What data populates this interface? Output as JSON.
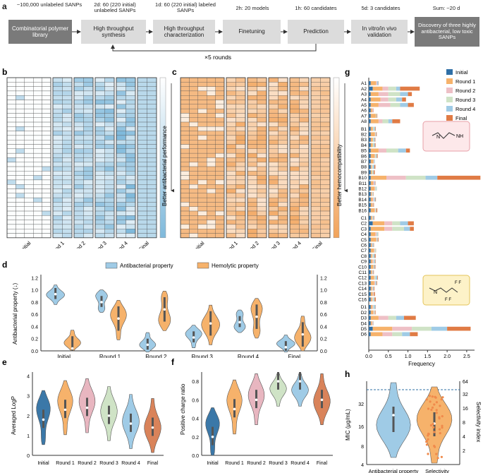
{
  "panels": {
    "a": "a",
    "b": "b",
    "c": "c",
    "d": "d",
    "e": "e",
    "f": "f",
    "g": "g",
    "h": "h"
  },
  "workflow": {
    "steps": [
      {
        "top": "~100,000 unlabeled SANPs",
        "label": "Combinatorial polymer library"
      },
      {
        "top": "2d: 60 (220 initial) unlabeled SANPs",
        "label": "High throughput synthesis"
      },
      {
        "top": "1d: 60 (220 initial) labeled SANPs",
        "label": "High throughput characterization"
      },
      {
        "top": "2h: 20 models",
        "label": "Finetuning"
      },
      {
        "top": "1h: 60 candidates",
        "label": "Prediction"
      },
      {
        "top": "5d: 3 candidates",
        "label": "In vitro/in vivo validation"
      },
      {
        "top": "Sum: ~20 d",
        "label": "Discovery of three highly antibacterial, low toxic SANPs"
      }
    ],
    "loop_label": "×5 rounds"
  },
  "heatmaps": {
    "rounds": [
      "Initial",
      "Round 1",
      "Round 2",
      "Round 3",
      "Round 4",
      "Final"
    ],
    "b_label": "Better antibacterial performance",
    "c_label": "Better hemocompatibility",
    "colors": {
      "blue": "#7fb9db",
      "orange": "#f2a35a"
    }
  },
  "violin_d": {
    "legend": [
      "Antibacterial property",
      "Hemolytic property"
    ],
    "ylabel_left": "Antibacterial property (↓)",
    "ylabel_right": "Hemolytic property (↓)",
    "ticks": [
      "0.0",
      "0.2",
      "0.4",
      "0.6",
      "0.8",
      "1.0",
      "1.2"
    ],
    "categories": [
      "Initial",
      "Round 1",
      "Round 2",
      "Round 3",
      "Round 4",
      "Final"
    ],
    "colors": {
      "anti": "#9fcbe6",
      "hemo": "#f6b26b"
    }
  },
  "violin_e": {
    "ylabel": "Averaged LogP",
    "ticks": [
      "0",
      "1",
      "2",
      "3",
      "4"
    ],
    "categories": [
      "Initial",
      "Round 1",
      "Round 2",
      "Round 3",
      "Round 4",
      "Final"
    ],
    "medians": [
      1.8,
      2.3,
      2.4,
      2.0,
      1.6,
      1.4
    ],
    "colors": [
      "#3b78a8",
      "#f6b26b",
      "#e8b6c0",
      "#cfe3c6",
      "#9fcbe6",
      "#d9835a"
    ]
  },
  "violin_f": {
    "ylabel": "Positive charge ratio",
    "ticks": [
      "0.0",
      "0.2",
      "0.4",
      "0.6",
      "0.8"
    ],
    "categories": [
      "Initial",
      "Round 1",
      "Round 2",
      "Round 3",
      "Round 4",
      "Final"
    ],
    "medians": [
      0.2,
      0.5,
      0.6,
      0.8,
      0.8,
      0.6
    ],
    "colors": [
      "#3b78a8",
      "#f6b26b",
      "#e8b6c0",
      "#cfe3c6",
      "#9fcbe6",
      "#d9835a"
    ]
  },
  "bars_g": {
    "xlabel": "Frequency",
    "xticks": [
      "0.0",
      "0.5",
      "1.0",
      "1.5",
      "2.0",
      "2.5"
    ],
    "legend": [
      "Initial",
      "Round 1",
      "Round 2",
      "Round 3",
      "Round 4",
      "Final"
    ],
    "colors": [
      "#2f6fa6",
      "#f6b26b",
      "#eec0c6",
      "#cfe3c6",
      "#9fcbe6",
      "#e07b45"
    ],
    "groups": [
      [
        "A1",
        "A2",
        "A3",
        "A4",
        "A5",
        "A6",
        "A7",
        "A8"
      ],
      [
        "B1",
        "B2",
        "B3",
        "B4",
        "B5",
        "B6",
        "B7",
        "B8",
        "B9",
        "B10",
        "B11",
        "B12",
        "B13",
        "B14",
        "B15",
        "B16"
      ],
      [
        "C1",
        "C2",
        "C3",
        "C4",
        "C5",
        "C6",
        "C7",
        "C8",
        "C9",
        "C10",
        "C11",
        "C12",
        "C13",
        "C14",
        "C15",
        "C16"
      ],
      [
        "D1",
        "D2",
        "D3",
        "D4",
        "D5",
        "D6"
      ]
    ]
  },
  "violin_h": {
    "ylabel_left": "MIC (μg/mL)",
    "ylabel_right": "Selectivity index",
    "left_ticks": [
      "4",
      "8",
      "16",
      "32"
    ],
    "right_ticks": [
      "2",
      "4",
      "8",
      "16",
      "32",
      "64"
    ],
    "categories": [
      "Antibacterial property",
      "Selectivity"
    ],
    "colors": {
      "mic": "#9fcbe6",
      "sel": "#f6b26b"
    }
  },
  "chart_data": [
    {
      "type": "violin",
      "title": "d",
      "categories": [
        "Initial",
        "Round 1",
        "Round 2",
        "Round 3",
        "Round 4",
        "Final"
      ],
      "series": [
        {
          "name": "Antibacterial property",
          "medians": [
            0.93,
            0.8,
            0.1,
            0.22,
            0.47,
            0.06
          ]
        },
        {
          "name": "Hemolytic property",
          "medians": [
            0.04,
            0.53,
            0.68,
            0.45,
            0.56,
            0.27
          ]
        }
      ],
      "ylabel": "Antibacterial property (↓)",
      "ylim": [
        0,
        1.25
      ]
    },
    {
      "type": "violin",
      "title": "e",
      "categories": [
        "Initial",
        "Round 1",
        "Round 2",
        "Round 3",
        "Round 4",
        "Final"
      ],
      "values": [
        1.8,
        2.3,
        2.4,
        2.0,
        1.6,
        1.4
      ],
      "ylabel": "Averaged LogP",
      "ylim": [
        0,
        4
      ]
    },
    {
      "type": "violin",
      "title": "f",
      "categories": [
        "Initial",
        "Round 1",
        "Round 2",
        "Round 3",
        "Round 4",
        "Final"
      ],
      "values": [
        0.2,
        0.5,
        0.6,
        0.8,
        0.8,
        0.6
      ],
      "ylabel": "Positive charge ratio",
      "ylim": [
        0,
        0.8
      ]
    },
    {
      "type": "bar",
      "title": "g",
      "xlabel": "Frequency",
      "xlim": [
        0,
        2.7
      ]
    },
    {
      "type": "violin",
      "title": "h",
      "categories": [
        "Antibacterial property",
        "Selectivity"
      ],
      "ylabel": "MIC (μg/mL)"
    }
  ]
}
